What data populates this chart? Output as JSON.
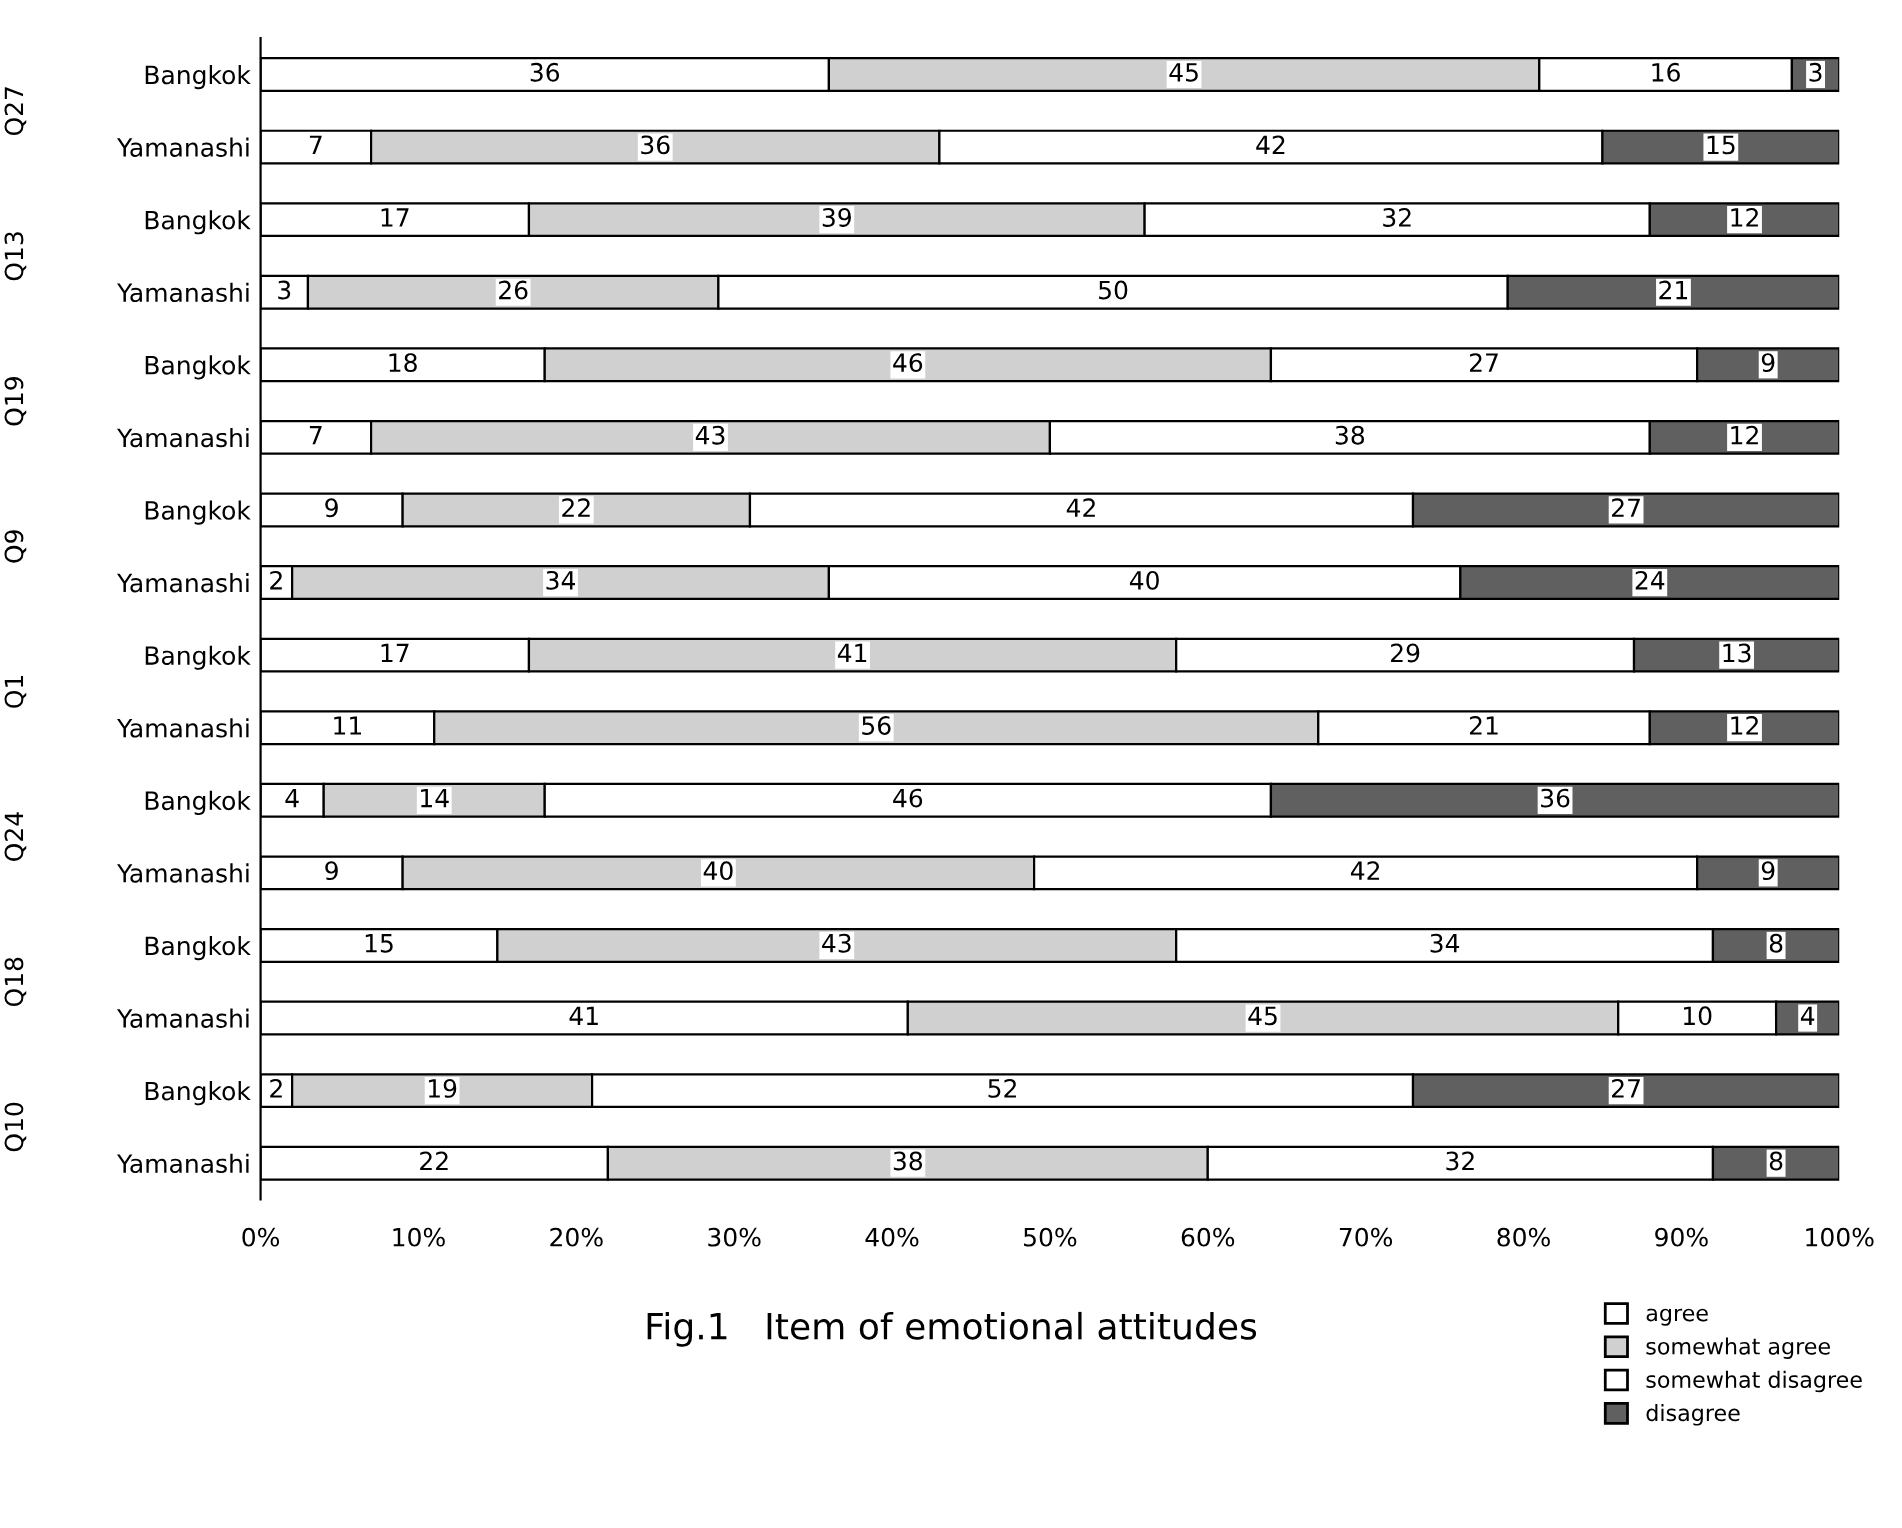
{
  "chart_data": {
    "type": "bar",
    "orientation": "horizontal",
    "stacked": true,
    "title": "Fig.1   Item of emotional attitudes",
    "categories": [
      "Bangkok",
      "Yamanashi",
      "Bangkok",
      "Yamanashi",
      "Bangkok",
      "Yamanashi",
      "Bangkok",
      "Yamanashi",
      "Bangkok",
      "Yamanashi",
      "Bangkok",
      "Yamanashi",
      "Bangkok",
      "Yamanashi",
      "Bangkok",
      "Yamanashi"
    ],
    "annotations": [
      "Q27",
      "Q13",
      "Q19",
      "Q9",
      "Q1",
      "Q24",
      "Q18",
      "Q10"
    ],
    "series": [
      {
        "name": "agree",
        "color": "#ffffff",
        "values": [
          36,
          7,
          17,
          3,
          18,
          7,
          9,
          2,
          17,
          11,
          4,
          9,
          15,
          41,
          2,
          22
        ]
      },
      {
        "name": "somewhat agree",
        "color": "#d0d0d0",
        "values": [
          45,
          36,
          39,
          26,
          46,
          43,
          22,
          34,
          41,
          56,
          14,
          40,
          43,
          45,
          19,
          38
        ]
      },
      {
        "name": "somewhat disagree",
        "color": "#ffffff",
        "values": [
          16,
          42,
          32,
          50,
          27,
          38,
          42,
          40,
          29,
          21,
          46,
          42,
          34,
          10,
          52,
          32
        ]
      },
      {
        "name": "disagree",
        "color": "#606060",
        "values": [
          3,
          15,
          12,
          21,
          9,
          12,
          27,
          24,
          13,
          12,
          36,
          9,
          8,
          4,
          27,
          8
        ]
      }
    ],
    "xlim": [
      0,
      100
    ],
    "xticks": [
      {
        "value": 0,
        "label": "0%"
      },
      {
        "value": 10,
        "label": "10%"
      },
      {
        "value": 20,
        "label": "20%"
      },
      {
        "value": 30,
        "label": "30%"
      },
      {
        "value": 40,
        "label": "40%"
      },
      {
        "value": 50,
        "label": "50%"
      },
      {
        "value": 60,
        "label": "60%"
      },
      {
        "value": 70,
        "label": "70%"
      },
      {
        "value": 80,
        "label": "80%"
      },
      {
        "value": 90,
        "label": "90%"
      },
      {
        "value": 100,
        "label": "100%"
      }
    ],
    "data_labels": true,
    "grid": false,
    "legend": "bottom right"
  }
}
